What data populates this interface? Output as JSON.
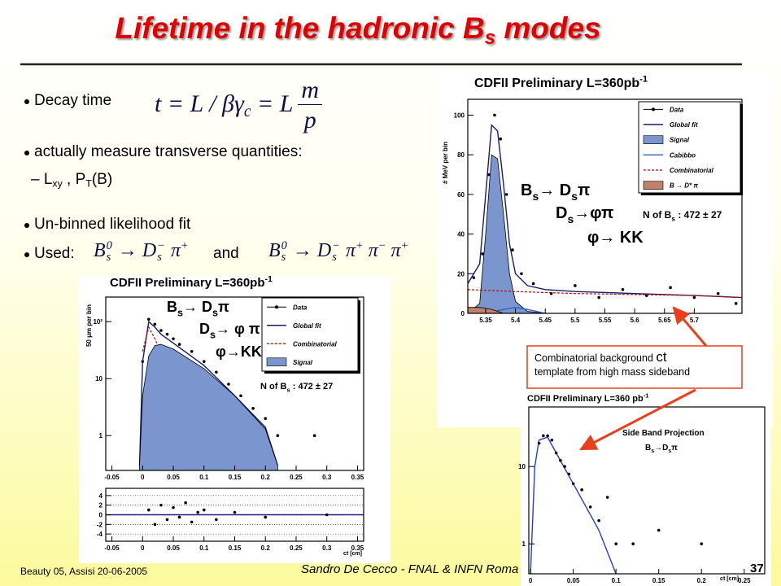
{
  "title": [
    {
      "text": "Lifetime in the hadronic B"
    },
    {
      "sub": "s"
    },
    {
      "text": " modes"
    }
  ],
  "bullets": {
    "decay_time": "Decay time",
    "decay_formula": {
      "lhs": [
        {
          "text": "t = L / βγ"
        },
        {
          "sub": "c"
        },
        {
          "text": " = L"
        }
      ],
      "num": "m",
      "den": "p"
    },
    "transverse": "actually measure transverse quantities:",
    "quantities": [
      {
        "text": "– L"
      },
      {
        "sub": "xy"
      },
      {
        "text": " , P"
      },
      {
        "sub": "T"
      },
      {
        "text": "(B)"
      }
    ],
    "likelihood": "Un-binned likelihood fit",
    "used": "Used:",
    "mode1": [
      {
        "text": "B"
      },
      {
        "sup": "0",
        "sub": "s"
      },
      {
        "text": " → D"
      },
      {
        "sup": "−",
        "sub": "s"
      },
      {
        "text": " π"
      },
      {
        "sup": "+"
      }
    ],
    "and": "and",
    "mode2": [
      {
        "text": "B"
      },
      {
        "sup": "0",
        "sub": "s"
      },
      {
        "text": " → D"
      },
      {
        "sup": "−",
        "sub": "s"
      },
      {
        "text": " π"
      },
      {
        "sup": "+"
      },
      {
        "text": " π"
      },
      {
        "sup": "−"
      },
      {
        "text": " π"
      },
      {
        "sup": "+"
      }
    ]
  },
  "plots": [
    {
      "type": "linear",
      "title": [
        {
          "text": "CDFII Preliminary L=360pb"
        },
        {
          "sup": "-1"
        }
      ],
      "ylabel": "# MeV per bin",
      "xlim": [
        5.32,
        5.78
      ],
      "ylim": [
        0,
        108
      ],
      "xticks": [
        5.35,
        5.4,
        5.45,
        5.5,
        5.55,
        5.6,
        5.65,
        5.7
      ],
      "yticks": [
        0,
        20,
        40,
        60,
        80,
        100
      ],
      "series": [
        {
          "name": "Data",
          "style": "points",
          "color": "#000000",
          "x": [
            5.33,
            5.345,
            5.355,
            5.365,
            5.375,
            5.385,
            5.395,
            5.41,
            5.43,
            5.46,
            5.5,
            5.54,
            5.58,
            5.62,
            5.66,
            5.7,
            5.74,
            5.77
          ],
          "values": [
            18,
            30,
            70,
            100,
            88,
            60,
            32,
            20,
            15,
            10,
            14,
            8,
            12,
            9,
            13,
            8,
            10,
            5
          ]
        },
        {
          "name": "Global fit",
          "style": "line",
          "color": "#1a1a6e",
          "x": [
            5.32,
            5.34,
            5.35,
            5.36,
            5.37,
            5.38,
            5.39,
            5.4,
            5.42,
            5.45,
            5.5,
            5.6,
            5.7,
            5.78
          ],
          "values": [
            15,
            25,
            60,
            95,
            92,
            65,
            35,
            20,
            14,
            12,
            11,
            10,
            9,
            8
          ]
        },
        {
          "name": "Signal",
          "style": "area",
          "color": "#7b96cf",
          "x": [
            5.32,
            5.34,
            5.35,
            5.36,
            5.37,
            5.38,
            5.39,
            5.4,
            5.42,
            5.45
          ],
          "values": [
            0,
            5,
            40,
            80,
            78,
            50,
            20,
            6,
            1,
            0
          ]
        },
        {
          "name": "Cabibbo",
          "style": "line",
          "color": "#3060c0",
          "x": [
            5.35,
            5.38,
            5.4,
            5.42,
            5.45
          ],
          "values": [
            0,
            2,
            3,
            2,
            0
          ]
        },
        {
          "name": "Combinatorial",
          "style": "dashed",
          "color": "#cc0000",
          "x": [
            5.32,
            5.4,
            5.5,
            5.6,
            5.7,
            5.78
          ],
          "values": [
            12,
            11,
            10,
            9.5,
            9,
            8
          ]
        },
        {
          "name": "B → D* π",
          "style": "area",
          "color": "#c0806a",
          "x": [
            5.32,
            5.34,
            5.36,
            5.38
          ],
          "values": [
            3,
            3,
            2,
            0
          ]
        }
      ],
      "annotations": [
        [
          {
            "text": "B"
          },
          {
            "sub": "s"
          },
          {
            "text": "→ D"
          },
          {
            "sub": "s"
          },
          {
            "text": "π"
          }
        ],
        [
          {
            "text": "D"
          },
          {
            "sub": "s"
          },
          {
            "text": "→φπ"
          }
        ],
        [
          {
            "text": "φ→ KK"
          }
        ],
        [
          {
            "text": "N of B"
          },
          {
            "sub": "s"
          },
          {
            "text": " : 472 ± 27"
          }
        ]
      ]
    },
    {
      "type": "log",
      "title": [
        {
          "text": "CDFII Preliminary L=360pb"
        },
        {
          "sup": "-1"
        }
      ],
      "ylabel": "50 μm per bin",
      "xlim": [
        -0.06,
        0.36
      ],
      "ylim": [
        0.245,
        270
      ],
      "xticks": [
        -0.05,
        0,
        0.05,
        0.1,
        0.15,
        0.2,
        0.25,
        0.3,
        0.35
      ],
      "yticks": [
        1,
        10,
        {
          "value": 100,
          "label": "10²"
        }
      ],
      "series": [
        {
          "name": "Data",
          "style": "points",
          "color": "#000000",
          "x": [
            0,
            0.01,
            0.02,
            0.03,
            0.04,
            0.05,
            0.06,
            0.08,
            0.1,
            0.12,
            0.14,
            0.16,
            0.18,
            0.2,
            0.22,
            0.28
          ],
          "values": [
            20,
            110,
            90,
            70,
            60,
            50,
            40,
            30,
            20,
            13,
            8,
            5,
            3,
            2,
            1,
            1
          ]
        },
        {
          "name": "Global fit",
          "style": "line",
          "color": "#1a1a6e",
          "x": [
            -0.005,
            0,
            0.01,
            0.02,
            0.03,
            0.05,
            0.1,
            0.15,
            0.2,
            0.22
          ],
          "values": [
            0.3,
            20,
            100,
            80,
            60,
            42,
            17,
            5,
            1.4,
            0.3
          ]
        },
        {
          "name": "Combinatorial",
          "style": "dashed",
          "color": "#cc0000",
          "x": [
            0,
            0.01,
            0.02,
            0.05,
            0.1,
            0.15,
            0.18
          ],
          "values": [
            30,
            80,
            50,
            10,
            2,
            0.6,
            0.3
          ]
        },
        {
          "name": "Signal",
          "style": "area",
          "color": "#7b96cf",
          "x": [
            -0.005,
            0,
            0.01,
            0.02,
            0.03,
            0.05,
            0.1,
            0.15,
            0.2,
            0.22
          ],
          "values": [
            0.3,
            5,
            25,
            38,
            40,
            33,
            15,
            5,
            1.3,
            0.3
          ]
        }
      ],
      "annotations": [
        [
          {
            "text": "B"
          },
          {
            "sub": "s"
          },
          {
            "text": "→ D"
          },
          {
            "sub": "s"
          },
          {
            "text": "π"
          }
        ],
        [
          {
            "text": "D"
          },
          {
            "sub": "s"
          },
          {
            "text": "→ φ π"
          }
        ],
        [
          {
            "text": "φ→KK"
          }
        ],
        [
          {
            "text": "N of B"
          },
          {
            "sub": "s"
          },
          {
            "text": " : 472 ± 27"
          }
        ]
      ]
    },
    {
      "type": "linear",
      "xlabel": "ct [cm]",
      "grid": true,
      "xlim": [
        -0.06,
        0.36
      ],
      "ylim": [
        -5.5,
        5.5
      ],
      "xticks": [
        -0.05,
        0,
        0.05,
        0.1,
        0.15,
        0.2,
        0.25,
        0.3,
        0.35
      ],
      "yticks": [
        -4,
        -2,
        0,
        2,
        4
      ],
      "series": [
        {
          "style": "line",
          "color": "#1a1a9e",
          "x": [
            -0.06,
            0.36
          ],
          "values": [
            0,
            0
          ]
        },
        {
          "style": "points",
          "color": "#000000",
          "x": [
            0.01,
            0.02,
            0.03,
            0.04,
            0.05,
            0.06,
            0.07,
            0.08,
            0.09,
            0.1,
            0.12,
            0.15,
            0.2,
            0.3
          ],
          "values": [
            1,
            -2,
            2,
            -1,
            1.5,
            -0.5,
            2.5,
            -1.5,
            0.5,
            1,
            -1,
            0.5,
            -0.5,
            0
          ]
        }
      ]
    },
    {
      "type": "log",
      "title": [
        {
          "text": "CDFII Preliminary L=360 pb"
        },
        {
          "sup": "-1"
        }
      ],
      "xlabel": "ct [cm]",
      "xlim": [
        -0.002,
        0.274
      ],
      "ylim": [
        0.41,
        59
      ],
      "xticks": [
        0,
        0.05,
        0.1,
        0.15,
        0.2,
        0.25
      ],
      "yticks": [
        1,
        10
      ],
      "series": [
        {
          "style": "line",
          "color": "#2040d0",
          "x": [
            0,
            0.005,
            0.01,
            0.02,
            0.03,
            0.05,
            0.08,
            0.1
          ],
          "values": [
            0.41,
            10,
            22,
            24,
            15,
            6,
            1.5,
            0.41
          ]
        },
        {
          "style": "points",
          "color": "#000000",
          "x": [
            0.01,
            0.015,
            0.02,
            0.025,
            0.03,
            0.035,
            0.04,
            0.045,
            0.05,
            0.06,
            0.07,
            0.08,
            0.09,
            0.1,
            0.12,
            0.15,
            0.2
          ],
          "values": [
            20,
            25,
            25,
            22,
            15,
            12,
            10,
            8,
            6,
            5,
            3,
            2,
            4,
            1,
            1,
            1.5,
            1
          ]
        }
      ],
      "annotations": [
        [
          {
            "text": "Side Band Projection"
          }
        ],
        [
          {
            "text": "B"
          },
          {
            "sub": "s"
          },
          {
            "text": "→D"
          },
          {
            "sub": "s"
          },
          {
            "text": "π"
          }
        ]
      ]
    }
  ],
  "callout": [
    [
      {
        "text": "Combinatorial background "
      },
      {
        "big": "ct"
      }
    ],
    [
      {
        "text": "template from high mass sideband"
      }
    ]
  ],
  "footer": {
    "left": "Beauty 05, Assisi 20-06-2005",
    "center": "Sandro De Cecco - FNAL & INFN Roma",
    "page": 37
  }
}
